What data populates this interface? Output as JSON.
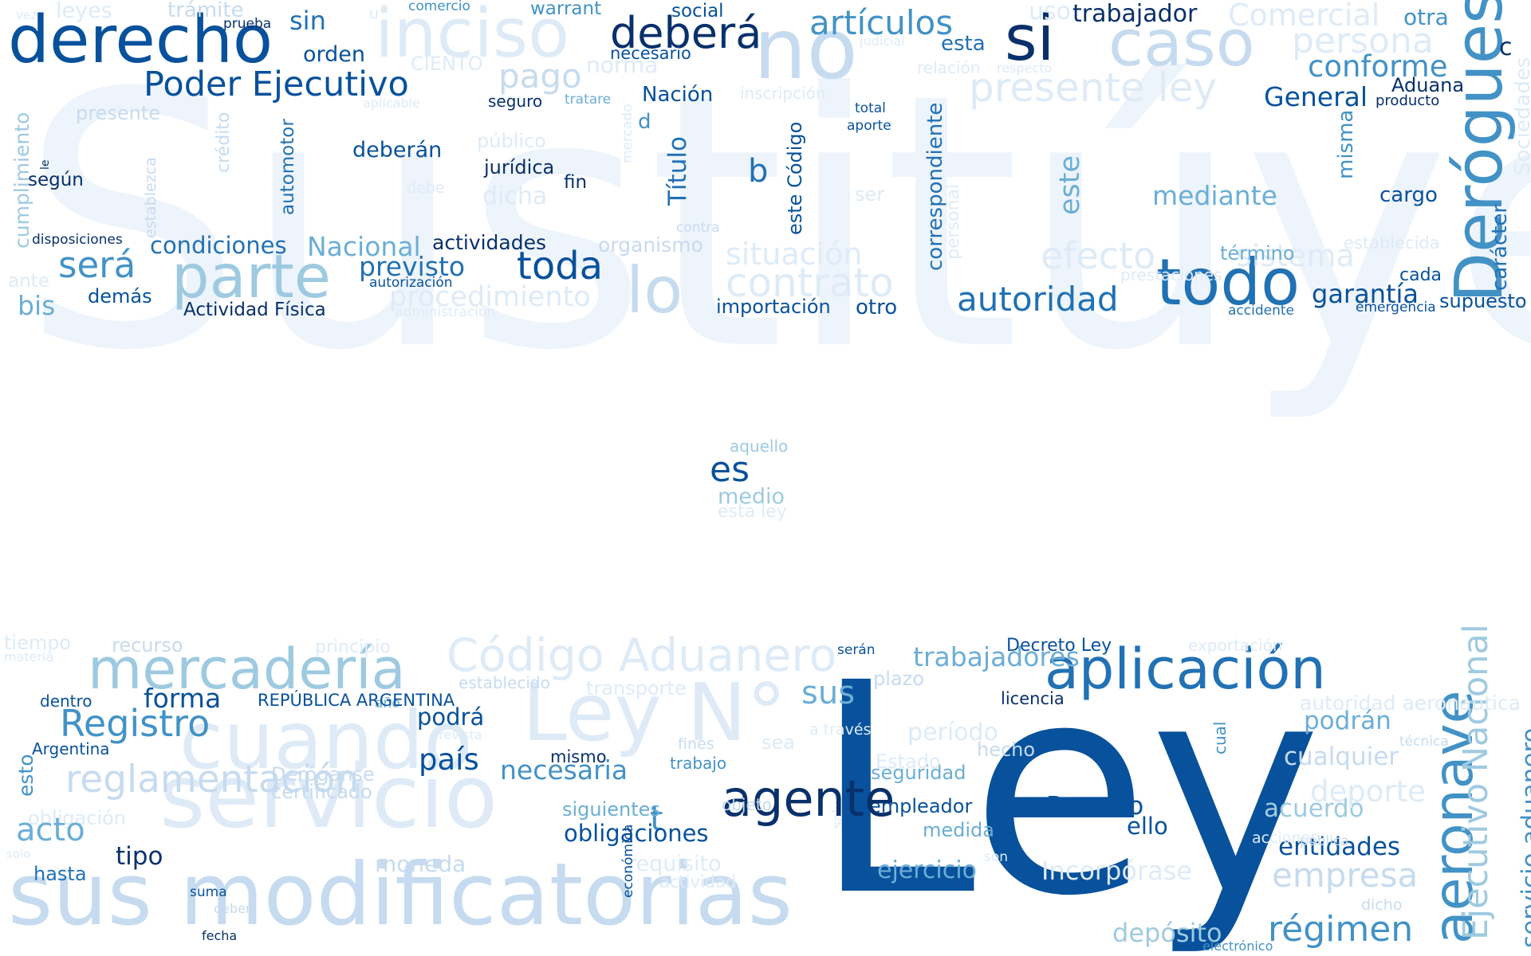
{
  "palette": [
    "#08306b",
    "#08519c",
    "#2171b5",
    "#4292c6",
    "#6baed6",
    "#9ecae1",
    "#c6dbef",
    "#deebf7",
    "#eef4fb"
  ],
  "words": [
    {
      "text": "Sustitúyese",
      "tone": 8
    },
    {
      "text": "derecho",
      "tone": 1
    },
    {
      "text": "no",
      "tone": 6
    },
    {
      "text": "si",
      "tone": 0
    },
    {
      "text": "caso",
      "tone": 6
    },
    {
      "text": "inciso",
      "tone": 7
    },
    {
      "text": "deberá",
      "tone": 0
    },
    {
      "text": "artículos",
      "tone": 3
    },
    {
      "text": "Poder Ejecutivo",
      "tone": 1
    },
    {
      "text": "pago",
      "tone": 6
    },
    {
      "text": "presente ley",
      "tone": 7
    },
    {
      "text": "General",
      "tone": 1
    },
    {
      "text": "conforme",
      "tone": 3
    },
    {
      "text": "Deróguese",
      "tone": 3
    },
    {
      "text": "persona",
      "tone": 7
    },
    {
      "text": "Comercial",
      "tone": 7
    },
    {
      "text": "trabajador",
      "tone": 0
    },
    {
      "text": "otra",
      "tone": 3
    },
    {
      "text": "c",
      "tone": 0
    },
    {
      "text": "Aduana",
      "tone": 0
    },
    {
      "text": "producto",
      "tone": 0
    },
    {
      "text": "Sociedades",
      "tone": 7
    },
    {
      "text": "carácter",
      "tone": 2
    },
    {
      "text": "supuesto",
      "tone": 1
    },
    {
      "text": "emergencia",
      "tone": 1
    },
    {
      "text": "garantía",
      "tone": 1
    },
    {
      "text": "cada",
      "tone": 1
    },
    {
      "text": "establecida",
      "tone": 7
    },
    {
      "text": "accidente",
      "tone": 2
    },
    {
      "text": "todo",
      "tone": 2
    },
    {
      "text": "sistema",
      "tone": 7
    },
    {
      "text": "término",
      "tone": 4
    },
    {
      "text": "prestaciones",
      "tone": 7
    },
    {
      "text": "cargo",
      "tone": 1
    },
    {
      "text": "misma",
      "tone": 3
    },
    {
      "text": "este",
      "tone": 4
    },
    {
      "text": "efecto",
      "tone": 7
    },
    {
      "text": "autoridad",
      "tone": 2
    },
    {
      "text": "correspondiente",
      "tone": 2
    },
    {
      "text": "personal",
      "tone": 7
    },
    {
      "text": "mediante",
      "tone": 4
    },
    {
      "text": "contrato",
      "tone": 7
    },
    {
      "text": "situación",
      "tone": 7
    },
    {
      "text": "importación",
      "tone": 1
    },
    {
      "text": "otro",
      "tone": 1
    },
    {
      "text": "total",
      "tone": 1
    },
    {
      "text": "aporte",
      "tone": 1
    },
    {
      "text": "ser",
      "tone": 7
    },
    {
      "text": "este Código",
      "tone": 1
    },
    {
      "text": "b",
      "tone": 2
    },
    {
      "text": "Título",
      "tone": 2
    },
    {
      "text": "d",
      "tone": 3
    },
    {
      "text": "Nación",
      "tone": 1
    },
    {
      "text": "mercado",
      "tone": 7
    },
    {
      "text": "lo",
      "tone": 6
    },
    {
      "text": "toda",
      "tone": 1
    },
    {
      "text": "organismo",
      "tone": 6
    },
    {
      "text": "contra",
      "tone": 6
    },
    {
      "text": "procedimiento",
      "tone": 7
    },
    {
      "text": "previsto",
      "tone": 2
    },
    {
      "text": "actividades",
      "tone": 0
    },
    {
      "text": "autorización",
      "tone": 1
    },
    {
      "text": "administración",
      "tone": 7
    },
    {
      "text": "Actividad Física",
      "tone": 0
    },
    {
      "text": "Nacional",
      "tone": 4
    },
    {
      "text": "condiciones",
      "tone": 2
    },
    {
      "text": "parte",
      "tone": 5
    },
    {
      "text": "será",
      "tone": 3
    },
    {
      "text": "demás",
      "tone": 1
    },
    {
      "text": "bis",
      "tone": 4
    },
    {
      "text": "ante",
      "tone": 7
    },
    {
      "text": "disposiciones",
      "tone": 0
    },
    {
      "text": "según",
      "tone": 0
    },
    {
      "text": "le",
      "tone": 0
    },
    {
      "text": "cumplimiento",
      "tone": 5
    },
    {
      "text": "establezca",
      "tone": 6
    },
    {
      "text": "crédito",
      "tone": 6
    },
    {
      "text": "automotor",
      "tone": 2
    },
    {
      "text": "deberán",
      "tone": 1
    },
    {
      "text": "jurídica",
      "tone": 0
    },
    {
      "text": "fin",
      "tone": 0
    },
    {
      "text": "dicha",
      "tone": 7
    },
    {
      "text": "debe",
      "tone": 7
    },
    {
      "text": "público",
      "tone": 7
    },
    {
      "text": "seguro",
      "tone": 0
    },
    {
      "text": "tratare",
      "tone": 4
    },
    {
      "text": "aplicable",
      "tone": 7
    },
    {
      "text": "presente",
      "tone": 6
    },
    {
      "text": "orden",
      "tone": 1
    },
    {
      "text": "sin",
      "tone": 2
    },
    {
      "text": "CIENTO",
      "tone": 7
    },
    {
      "text": "norma",
      "tone": 7
    },
    {
      "text": "necesario",
      "tone": 1
    },
    {
      "text": "social",
      "tone": 1
    },
    {
      "text": "warrant",
      "tone": 3
    },
    {
      "text": "comercio",
      "tone": 3
    },
    {
      "text": "u",
      "tone": 7
    },
    {
      "text": "prueba",
      "tone": 0
    },
    {
      "text": "trámite",
      "tone": 6
    },
    {
      "text": "leyes",
      "tone": 7
    },
    {
      "text": "vez",
      "tone": 7
    },
    {
      "text": "uso",
      "tone": 7
    },
    {
      "text": "esta",
      "tone": 2
    },
    {
      "text": "judicial",
      "tone": 7
    },
    {
      "text": "relación",
      "tone": 7
    },
    {
      "text": "respecto",
      "tone": 7
    },
    {
      "text": "inscripción",
      "tone": 7
    },
    {
      "text": "aquello",
      "tone": 5
    },
    {
      "text": "es",
      "tone": 1
    },
    {
      "text": "medio",
      "tone": 5
    },
    {
      "text": "esta ley",
      "tone": 7
    },
    {
      "text": "Ley",
      "tone": 1
    },
    {
      "text": "sus modificatorias",
      "tone": 6
    },
    {
      "text": "servicio",
      "tone": 7
    },
    {
      "text": "mercadería",
      "tone": 5
    },
    {
      "text": "cuando",
      "tone": 7
    },
    {
      "text": "Código Aduanero",
      "tone": 7
    },
    {
      "text": "Ley N°",
      "tone": 7
    },
    {
      "text": "aplicación",
      "tone": 2
    },
    {
      "text": "aeronave",
      "tone": 3
    },
    {
      "text": "Ejecutivo Nacional",
      "tone": 5
    },
    {
      "text": "servicio aduanero",
      "tone": 3
    },
    {
      "text": "régimen",
      "tone": 3
    },
    {
      "text": "depósito",
      "tone": 5
    },
    {
      "text": "electrónico",
      "tone": 3
    },
    {
      "text": "dicho",
      "tone": 6
    },
    {
      "text": "empresa",
      "tone": 6
    },
    {
      "text": "entidades",
      "tone": 1
    },
    {
      "text": "pública",
      "tone": 6
    },
    {
      "text": "acciones",
      "tone": 7
    },
    {
      "text": "acuerdo",
      "tone": 5
    },
    {
      "text": "deporte",
      "tone": 7
    },
    {
      "text": "cualquier",
      "tone": 6
    },
    {
      "text": "técnica",
      "tone": 6
    },
    {
      "text": "podrán",
      "tone": 4
    },
    {
      "text": "autoridad aeronáutica",
      "tone": 7
    },
    {
      "text": "exportación",
      "tone": 7
    },
    {
      "text": "Decreto Ley",
      "tone": 1
    },
    {
      "text": "licencia",
      "tone": 0
    },
    {
      "text": "cual",
      "tone": 3
    },
    {
      "text": "hecho",
      "tone": 6
    },
    {
      "text": "Incorpórase",
      "tone": 7
    },
    {
      "text": "son",
      "tone": 7
    },
    {
      "text": "Decreto",
      "tone": 1
    },
    {
      "text": "ello",
      "tone": 1
    },
    {
      "text": "medida",
      "tone": 4
    },
    {
      "text": "empleador",
      "tone": 1
    },
    {
      "text": "seguridad",
      "tone": 4
    },
    {
      "text": "Estado",
      "tone": 7
    },
    {
      "text": "período",
      "tone": 7
    },
    {
      "text": "plazo",
      "tone": 6
    },
    {
      "text": "trabajadores",
      "tone": 4
    },
    {
      "text": "serán",
      "tone": 1
    },
    {
      "text": "ejercicio",
      "tone": 4
    },
    {
      "text": "salud",
      "tone": 7
    },
    {
      "text": "a través",
      "tone": 7
    },
    {
      "text": "sea",
      "tone": 7
    },
    {
      "text": "agente",
      "tone": 0
    },
    {
      "text": "sus",
      "tone": 4
    },
    {
      "text": "t",
      "tone": 3
    },
    {
      "text": "trabajo",
      "tone": 3
    },
    {
      "text": "fines",
      "tone": 6
    },
    {
      "text": "objeto",
      "tone": 6
    },
    {
      "text": "transporte",
      "tone": 7
    },
    {
      "text": "necesaria",
      "tone": 3
    },
    {
      "text": "siguientes",
      "tone": 4
    },
    {
      "text": "obligaciones",
      "tone": 1
    },
    {
      "text": "mismo",
      "tone": 0
    },
    {
      "text": "país",
      "tone": 1
    },
    {
      "text": "podrá",
      "tone": 1
    },
    {
      "text": "prevista",
      "tone": 7
    },
    {
      "text": "establecido",
      "tone": 6
    },
    {
      "text": "año",
      "tone": 4
    },
    {
      "text": "REPÚBLICA ARGENTINA",
      "tone": 1
    },
    {
      "text": "Deróganse",
      "tone": 6
    },
    {
      "text": "certificado",
      "tone": 6
    },
    {
      "text": "requisito",
      "tone": 7
    },
    {
      "text": "actividad",
      "tone": 7
    },
    {
      "text": "económica",
      "tone": 1
    },
    {
      "text": "moneda",
      "tone": 6
    },
    {
      "text": "tipo",
      "tone": 0
    },
    {
      "text": "reglamentación",
      "tone": 6
    },
    {
      "text": "Registro",
      "tone": 3
    },
    {
      "text": "forma",
      "tone": 1
    },
    {
      "text": "dentro",
      "tone": 1
    },
    {
      "text": "esto",
      "tone": 3
    },
    {
      "text": "Argentina",
      "tone": 1
    },
    {
      "text": "obligación",
      "tone": 7
    },
    {
      "text": "acto",
      "tone": 4
    },
    {
      "text": "solo",
      "tone": 7
    },
    {
      "text": "hasta",
      "tone": 2
    },
    {
      "text": "suma",
      "tone": 1
    },
    {
      "text": "deben",
      "tone": 6
    },
    {
      "text": "fecha",
      "tone": 0
    },
    {
      "text": "tiempo",
      "tone": 7
    },
    {
      "text": "materia",
      "tone": 7
    },
    {
      "text": "recurso",
      "tone": 6
    },
    {
      "text": "principio",
      "tone": 7
    },
    {
      "text": "Código Civil",
      "tone": 7
    },
    {
      "text": "ese",
      "tone": 7
    }
  ]
}
